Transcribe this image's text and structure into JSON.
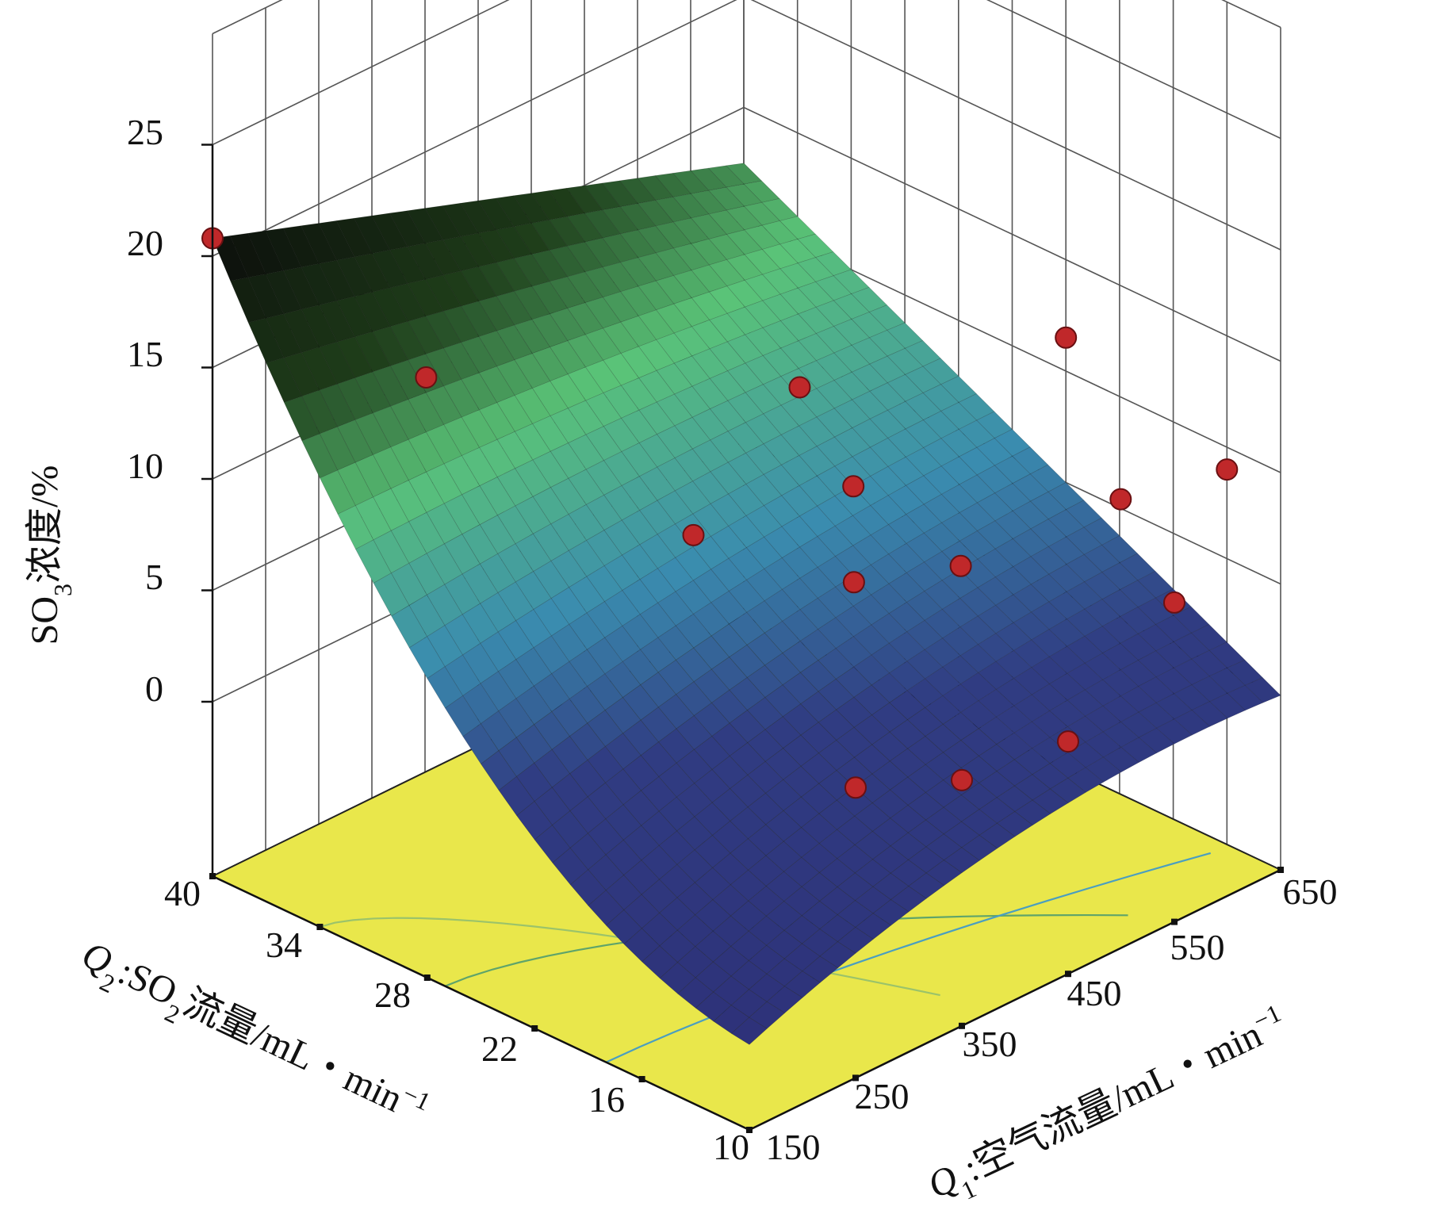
{
  "chart_data": {
    "type": "surface",
    "zlabel": {
      "main": "SO",
      "sub": "3",
      "rest": "浓度/%"
    },
    "xlabel": {
      "prefix": "Q",
      "sub1": "2",
      "mid": ":SO",
      "sub2": "2",
      "rest": "流量/mL・min",
      "sup": "−1"
    },
    "ylabel": {
      "prefix": "Q",
      "sub1": "1",
      "rest": ":空气流量/mL・min",
      "sup": "−1"
    },
    "x_axis_name": "SO2 flow",
    "y_axis_name": "air flow",
    "z_ticks": [
      "0",
      "5",
      "10",
      "15",
      "20",
      "25"
    ],
    "x_ticks": [
      "10",
      "16",
      "22",
      "28",
      "34",
      "40"
    ],
    "y_ticks": [
      "150",
      "250",
      "350",
      "450",
      "550",
      "650"
    ],
    "xlim": [
      10,
      40
    ],
    "ylim": [
      150,
      650
    ],
    "zlim": [
      0,
      25
    ],
    "grid": true,
    "colors": {
      "floor": "#e9e74b",
      "surface_low": "#2b2d6e",
      "surface_mid": "#3a86a8",
      "surface_high": "#5fc25a",
      "surface_peak": "#0a0a0a",
      "points": "#c0282a"
    },
    "points": [
      {
        "x": 40,
        "y": 150,
        "z": 20.8
      },
      {
        "x": 34,
        "y": 250,
        "z": 14.5
      },
      {
        "x": 25,
        "y": 450,
        "z": 12.8
      },
      {
        "x": 25,
        "y": 350,
        "z": 8.5
      },
      {
        "x": 22,
        "y": 450,
        "z": 9.5
      },
      {
        "x": 19,
        "y": 400,
        "z": 7.5
      },
      {
        "x": 16,
        "y": 450,
        "z": 8.2
      },
      {
        "x": 22,
        "y": 650,
        "z": 11.5
      },
      {
        "x": 13,
        "y": 550,
        "z": 10.0
      },
      {
        "x": 10,
        "y": 550,
        "z": 6.5
      },
      {
        "x": 10,
        "y": 450,
        "z": 2.6
      },
      {
        "x": 10,
        "y": 350,
        "z": 3.2
      },
      {
        "x": 10,
        "y": 250,
        "z": 5.2
      },
      {
        "x": 13,
        "y": 650,
        "z": 9.0
      }
    ]
  }
}
